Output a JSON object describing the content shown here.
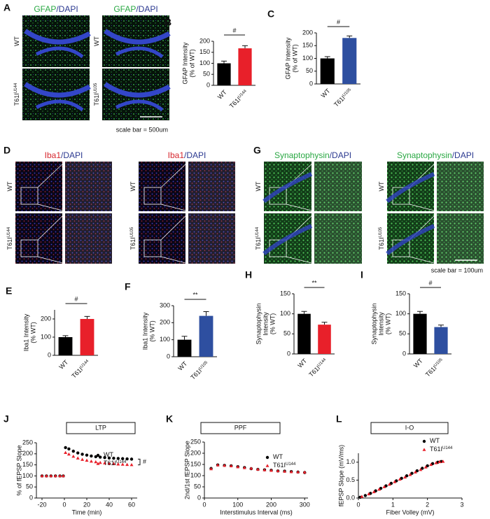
{
  "image_panels": [
    {
      "label": "A",
      "columns": [
        {
          "stain": "GFAP",
          "counter": "/DAPI",
          "rows": [
            {
              "text": "WT"
            },
            {
              "text": "T61I",
              "sup": "U144"
            }
          ]
        },
        {
          "stain": "GFAP",
          "counter": "/DAPI",
          "rows": [
            {
              "text": "WT"
            },
            {
              "text": "T61I",
              "sup": "U105"
            }
          ]
        }
      ],
      "note": "scale bar = 500um"
    },
    {
      "label": "D",
      "columns": [
        {
          "stain": "Iba1",
          "counter": "/DAPI",
          "rows": [
            {
              "text": "WT"
            },
            {
              "text": "T61I",
              "sup": "U144"
            }
          ]
        },
        {
          "stain": "Iba1",
          "counter": "/DAPI",
          "rows": [
            {
              "text": "WT"
            },
            {
              "text": "T61I",
              "sup": "U105"
            }
          ]
        }
      ]
    },
    {
      "label": "G",
      "columns": [
        {
          "stain": "Synaptophysin",
          "counter": "/DAPI",
          "rows": [
            {
              "text": "WT"
            },
            {
              "text": "T61I",
              "sup": "U144"
            }
          ]
        },
        {
          "stain": "Synaptophysin",
          "counter": "/DAPI",
          "rows": [
            {
              "text": "WT"
            },
            {
              "text": "T61I",
              "sup": "U105"
            }
          ]
        }
      ],
      "note": "scale bar = 100um"
    }
  ],
  "chart_data": [
    {
      "label": "B",
      "type": "bar",
      "ylabel": [
        "GFAP Intensity",
        "(% of WT)"
      ],
      "categories": [
        {
          "text": "WT"
        },
        {
          "text": "T61I",
          "sup": "U144"
        }
      ],
      "values": [
        100,
        168
      ],
      "errors": [
        10,
        12
      ],
      "colors": [
        "#000000",
        "#e8202a"
      ],
      "ylim": [
        0,
        200
      ],
      "yticks": [
        0,
        50,
        100,
        150,
        200
      ],
      "significance": "#"
    },
    {
      "label": "C",
      "type": "bar",
      "ylabel": [
        "GFAP Intensity",
        "(% of WT)"
      ],
      "categories": [
        {
          "text": "WT"
        },
        {
          "text": "T61I",
          "sup": "U105"
        }
      ],
      "values": [
        100,
        180
      ],
      "errors": [
        7,
        8
      ],
      "colors": [
        "#000000",
        "#2e4fa0"
      ],
      "ylim": [
        0,
        200
      ],
      "yticks": [
        0,
        50,
        100,
        150,
        200
      ],
      "significance": "#"
    },
    {
      "label": "E",
      "type": "bar",
      "ylabel": [
        "Iba1 Intensity",
        "(% WT)"
      ],
      "categories": [
        {
          "text": "WT"
        },
        {
          "text": "T61I",
          "sup": "U144"
        }
      ],
      "values": [
        100,
        200
      ],
      "errors": [
        8,
        14
      ],
      "colors": [
        "#000000",
        "#e8202a"
      ],
      "ylim": [
        0,
        250
      ],
      "yticks": [
        0,
        100,
        200
      ],
      "significance": "#"
    },
    {
      "label": "F",
      "type": "bar",
      "ylabel": [
        "Iba1 Intensity",
        "(% WT)"
      ],
      "categories": [
        {
          "text": "WT"
        },
        {
          "text": "T61I",
          "sup": "U105"
        }
      ],
      "values": [
        100,
        240
      ],
      "errors": [
        20,
        25
      ],
      "colors": [
        "#000000",
        "#2e4fa0"
      ],
      "ylim": [
        0,
        300
      ],
      "yticks": [
        0,
        100,
        200,
        300
      ],
      "significance": "**"
    },
    {
      "label": "H",
      "type": "bar",
      "ylabel": [
        "Synaptophysin",
        "Intensity",
        "(% WT)"
      ],
      "categories": [
        {
          "text": "WT"
        },
        {
          "text": "T61I",
          "sup": "U144"
        }
      ],
      "values": [
        100,
        73
      ],
      "errors": [
        6,
        6
      ],
      "colors": [
        "#000000",
        "#e8202a"
      ],
      "ylim": [
        0,
        150
      ],
      "yticks": [
        0,
        50,
        100,
        150
      ],
      "significance": "**"
    },
    {
      "label": "I",
      "type": "bar",
      "ylabel": [
        "Synaptophysin",
        "Intensity",
        "(% WT)"
      ],
      "categories": [
        {
          "text": "WT"
        },
        {
          "text": "T61I",
          "sup": "U105"
        }
      ],
      "values": [
        100,
        67
      ],
      "errors": [
        6,
        5
      ],
      "colors": [
        "#000000",
        "#2e4fa0"
      ],
      "ylim": [
        0,
        150
      ],
      "yticks": [
        0,
        50,
        100,
        150
      ],
      "significance": "#"
    },
    {
      "label": "J",
      "type": "scatter",
      "title": "LTP",
      "xlabel": "Time (min)",
      "ylabel": "% of fEPSP Slope",
      "xlim": [
        -25,
        65
      ],
      "xticks": [
        -20,
        0,
        20,
        40,
        60
      ],
      "ylim": [
        0,
        250
      ],
      "yticks": [
        0,
        50,
        100,
        150,
        200,
        250
      ],
      "significance": "#",
      "series": [
        {
          "name": "WT",
          "color": "#000000",
          "marker": "circle",
          "x": [
            -20,
            -16,
            -12,
            -8,
            -4,
            -1,
            1,
            4,
            8,
            12,
            16,
            20,
            24,
            28,
            32,
            36,
            40,
            44,
            48,
            52,
            56,
            60
          ],
          "values": [
            100,
            100,
            100,
            100,
            100,
            100,
            228,
            222,
            212,
            204,
            198,
            194,
            190,
            187,
            185,
            183,
            181,
            180,
            179,
            178,
            177,
            176
          ]
        },
        {
          "name": "T61I",
          "name_sup": "U144",
          "color": "#e8202a",
          "marker": "triangle",
          "x": [
            -20,
            -16,
            -12,
            -8,
            -4,
            -1,
            1,
            4,
            8,
            12,
            16,
            20,
            24,
            28,
            32,
            36,
            40,
            44,
            48,
            52,
            56,
            60
          ],
          "values": [
            100,
            100,
            100,
            100,
            100,
            100,
            205,
            198,
            188,
            180,
            174,
            170,
            166,
            163,
            160,
            158,
            156,
            155,
            153,
            152,
            151,
            150
          ]
        }
      ]
    },
    {
      "label": "K",
      "type": "scatter",
      "title": "PPF",
      "xlabel": "Interstimulus Interval (ms)",
      "ylabel": "2nd/1st fEPSP Slope",
      "xlim": [
        0,
        310
      ],
      "xticks": [
        0,
        100,
        200,
        300
      ],
      "ylim": [
        0,
        250
      ],
      "yticks": [
        0,
        50,
        100,
        150,
        200,
        250
      ],
      "series": [
        {
          "name": "WT",
          "color": "#000000",
          "marker": "circle",
          "x": [
            20,
            40,
            60,
            80,
            100,
            120,
            140,
            160,
            180,
            200,
            220,
            240,
            260,
            280,
            300
          ],
          "values": [
            132,
            148,
            146,
            144,
            140,
            136,
            131,
            128,
            126,
            124,
            121,
            120,
            118,
            116,
            114
          ]
        },
        {
          "name": "T61I",
          "name_sup": "U144",
          "color": "#e8202a",
          "marker": "triangle",
          "x": [
            20,
            40,
            60,
            80,
            100,
            120,
            140,
            160,
            180,
            200,
            220,
            240,
            260,
            280,
            300
          ],
          "values": [
            130,
            147,
            145,
            143,
            139,
            135,
            132,
            128,
            125,
            123,
            121,
            119,
            117,
            116,
            115
          ]
        }
      ]
    },
    {
      "label": "L",
      "type": "scatter",
      "title": "I-O",
      "xlabel": "Fiber Volley (mV)",
      "ylabel": "fEPSP Slope (mV/ms)",
      "xlim": [
        0,
        3
      ],
      "xticks": [
        0,
        1,
        2,
        3
      ],
      "ylim": [
        0,
        1.25
      ],
      "yticks": [
        {
          "value": 0,
          "label": "0.0"
        },
        {
          "value": 0.5,
          "label": "0.5"
        },
        {
          "value": 1,
          "label": "1.0"
        }
      ],
      "series": [
        {
          "name": "WT",
          "color": "#000000",
          "marker": "circle",
          "x": [
            0.05,
            0.2,
            0.35,
            0.5,
            0.65,
            0.8,
            0.95,
            1.1,
            1.25,
            1.4,
            1.55,
            1.7,
            1.85,
            2.0,
            2.15,
            2.3,
            2.4
          ],
          "values": [
            0.02,
            0.07,
            0.13,
            0.2,
            0.27,
            0.34,
            0.41,
            0.48,
            0.55,
            0.62,
            0.69,
            0.76,
            0.83,
            0.9,
            0.96,
            1.0,
            1.02
          ]
        },
        {
          "name": "T61I",
          "name_sup": "U144",
          "color": "#e8202a",
          "marker": "triangle",
          "x": [
            0.1,
            0.3,
            0.45,
            0.6,
            0.75,
            0.9,
            1.05,
            1.2,
            1.35,
            1.5,
            1.65,
            1.8,
            1.95,
            2.1,
            2.25,
            2.35,
            2.45
          ],
          "values": [
            0.04,
            0.11,
            0.17,
            0.24,
            0.31,
            0.38,
            0.45,
            0.52,
            0.58,
            0.65,
            0.72,
            0.79,
            0.86,
            0.93,
            0.98,
            1.01,
            1.02
          ]
        }
      ]
    }
  ]
}
